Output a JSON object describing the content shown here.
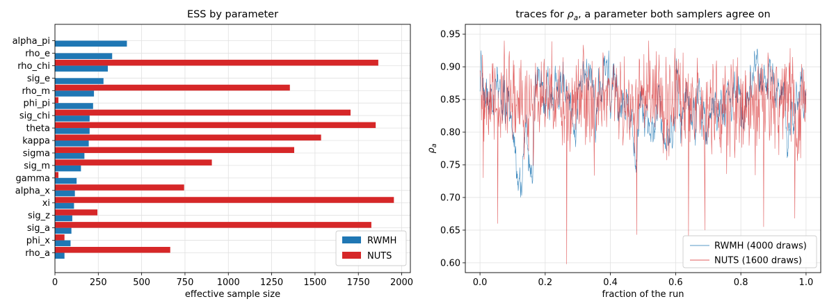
{
  "chart_data": [
    {
      "type": "bar",
      "orientation": "horizontal",
      "title": "ESS by parameter",
      "xlabel": "effective sample size",
      "ylabel": "",
      "xlim": [
        0,
        2050
      ],
      "xticks": [
        0,
        250,
        500,
        750,
        1000,
        1250,
        1500,
        1750,
        2000
      ],
      "grid": true,
      "legend_position": "lower-right",
      "categories": [
        "rho_a",
        "phi_x",
        "sig_a",
        "sig_z",
        "xi",
        "alpha_x",
        "gamma",
        "sig_m",
        "sigma",
        "kappa",
        "theta",
        "sig_chi",
        "phi_pi",
        "rho_m",
        "sig_e",
        "rho_chi",
        "rho_e",
        "alpha_pi"
      ],
      "series": [
        {
          "name": "RWMH",
          "color": "#1f77b4",
          "values": [
            55,
            90,
            95,
            100,
            110,
            115,
            125,
            150,
            170,
            195,
            200,
            200,
            220,
            225,
            280,
            305,
            330,
            415
          ]
        },
        {
          "name": "NUTS",
          "color": "#d62728",
          "values": [
            665,
            55,
            1825,
            245,
            1955,
            745,
            20,
            905,
            1380,
            1535,
            1850,
            1705,
            20,
            1355,
            0,
            1865,
            0,
            0
          ]
        }
      ]
    },
    {
      "type": "line",
      "title_prefix": "traces for ",
      "title_symbol": "ρ",
      "title_sub": "a",
      "title_suffix": ", a parameter both samplers agree on",
      "xlabel": "fraction of the run",
      "ylabel_symbol": "ρ",
      "ylabel_sub": "a",
      "xlim": [
        -0.045,
        1.045
      ],
      "ylim": [
        0.585,
        0.965
      ],
      "xticks": [
        0.0,
        0.2,
        0.4,
        0.6,
        0.8,
        1.0
      ],
      "yticks": [
        0.6,
        0.65,
        0.7,
        0.75,
        0.8,
        0.85,
        0.9,
        0.95
      ],
      "grid": true,
      "legend_position": "lower-right",
      "series": [
        {
          "name": "RWMH (4000 draws)",
          "color": "#1f77b4",
          "draws": 4000,
          "summary": {
            "center": 0.845,
            "min": 0.657,
            "max": 0.95
          }
        },
        {
          "name": "NUTS (1600 draws)",
          "color": "#d62728",
          "draws": 1600,
          "summary": {
            "center": 0.845,
            "min": 0.598,
            "max": 0.94
          }
        }
      ]
    }
  ]
}
